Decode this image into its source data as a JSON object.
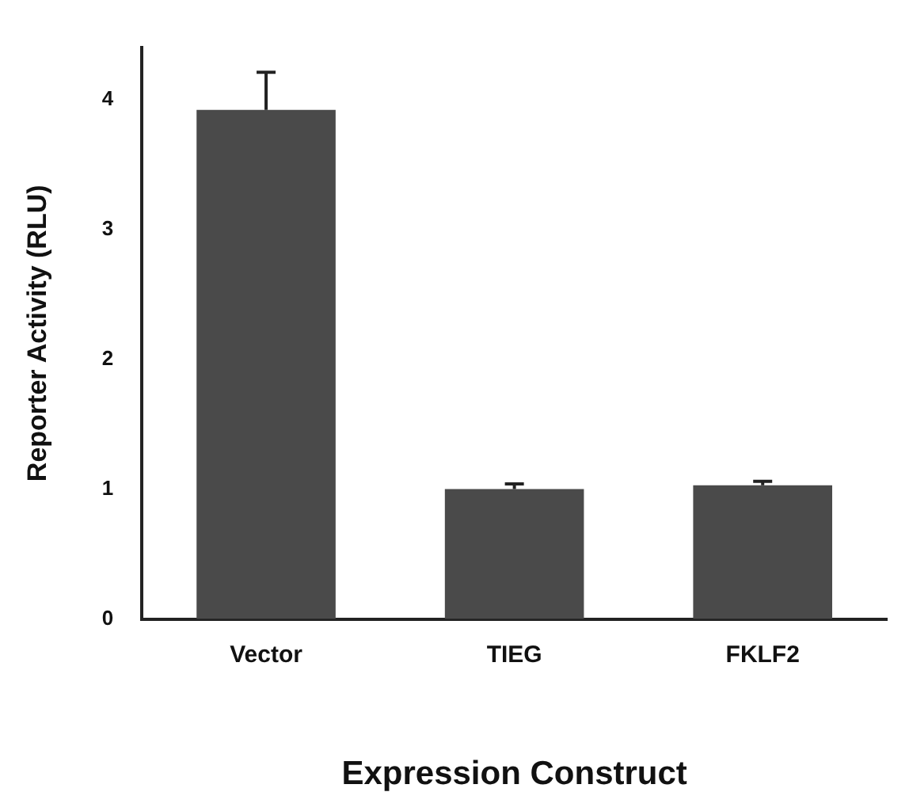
{
  "chart_data": {
    "type": "bar",
    "xlabel": "Expression Construct",
    "ylabel": "Reporter Activity (RLU)",
    "categories": [
      "Vector",
      "TIEG",
      "FKLF2"
    ],
    "values": [
      3.92,
      1.0,
      1.03
    ],
    "errors": [
      [
        3.92,
        4.21
      ],
      [
        1.0,
        1.04
      ],
      [
        1.03,
        1.06
      ]
    ],
    "color": "#4a4a4a",
    "ylim": [
      0,
      4.4
    ],
    "yticks": [
      0,
      1,
      2,
      3,
      4
    ],
    "grid": false,
    "legend": false
  }
}
